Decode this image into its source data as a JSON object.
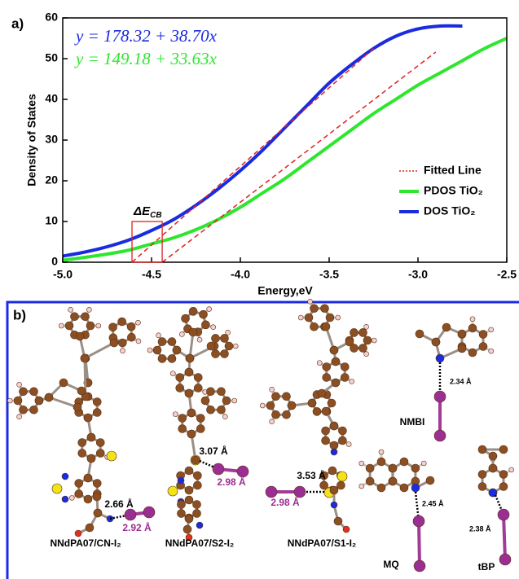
{
  "chart_data": {
    "type": "line",
    "panel_label": "a)",
    "x_label": "Energy,eV",
    "y_label": "Density of States",
    "xlim": [
      -5,
      -2.5
    ],
    "ylim": [
      0,
      60
    ],
    "xticks": [
      {
        "value": -5,
        "label": "-5.0"
      },
      {
        "value": -4.5,
        "label": "-4.5"
      },
      {
        "value": -4,
        "label": "-4.0"
      },
      {
        "value": -3.5,
        "label": "-3.5"
      },
      {
        "value": -3,
        "label": "-3.0"
      },
      {
        "value": -2.5,
        "label": "-2.5"
      }
    ],
    "yticks": [
      0,
      10,
      20,
      30,
      40,
      50,
      60
    ],
    "legend": "lower right",
    "series": [
      {
        "name": "Fitted Line",
        "color": "#e02020",
        "dashed": true,
        "x": [
          -4.61,
          -3.25,
          null,
          -4.44,
          -2.9
        ],
        "values": [
          0,
          52.5,
          null,
          0,
          51.6
        ]
      },
      {
        "name": "PDOS TiO₂",
        "color": "#2ee62e",
        "x": [
          -5,
          -4.875,
          -4.75,
          -4.625,
          -4.5,
          -4.375,
          -4.25,
          -4.125,
          -4,
          -3.875,
          -3.75,
          -3.625,
          -3.5,
          -3.375,
          -3.25,
          -3.125,
          -3,
          -2.875,
          -2.75,
          -2.625,
          -2.5
        ],
        "values": [
          0.5,
          1.2,
          2,
          3,
          4.5,
          6,
          8,
          10.5,
          13.5,
          17,
          20.5,
          24.5,
          28.5,
          32.5,
          36.5,
          40,
          43.5,
          46.5,
          49.5,
          52.5,
          55
        ]
      },
      {
        "name": "DOS TiO₂",
        "color": "#1a2be0",
        "x": [
          -5,
          -4.875,
          -4.75,
          -4.625,
          -4.5,
          -4.375,
          -4.25,
          -4.125,
          -4,
          -3.875,
          -3.75,
          -3.625,
          -3.5,
          -3.375,
          -3.25,
          -3.125,
          -3,
          -2.875,
          -2.75
        ],
        "values": [
          1.5,
          2.5,
          3.8,
          5.5,
          7.8,
          10.5,
          14,
          18,
          22.5,
          27.5,
          33,
          38.5,
          44,
          48.5,
          52.5,
          55.5,
          57.3,
          58,
          58
        ]
      }
    ],
    "annotations": [
      {
        "text": "y = 178.32 + 38.70x",
        "color": "#1a2be0"
      },
      {
        "text": "y = 149.18 + 33.63x",
        "color": "#2ee62e"
      },
      {
        "text": "ΔE",
        "subscript": "CB",
        "color": "#e02020",
        "box_xlim": [
          -4.61,
          -4.44
        ],
        "box_ylim": [
          0,
          10
        ]
      }
    ]
  },
  "panel_b": {
    "label": "b)",
    "structures": [
      {
        "name": "NNdPA07/CN-I₂",
        "distances": [
          "2.66 Å",
          "2.92 Å"
        ]
      },
      {
        "name": "NNdPA07/S2-I₂",
        "distances": [
          "3.07 Å",
          "2.98 Å"
        ]
      },
      {
        "name": "NNdPA07/S1-I₂",
        "distances": [
          "3.53 Å",
          "2.98 Å"
        ]
      },
      {
        "name": "NMBI",
        "distances": [
          "2.34 Å"
        ]
      },
      {
        "name": "MQ",
        "distances": [
          "2.45 Å"
        ]
      },
      {
        "name": "tBP",
        "distances": [
          "2.38 Å"
        ]
      }
    ]
  }
}
